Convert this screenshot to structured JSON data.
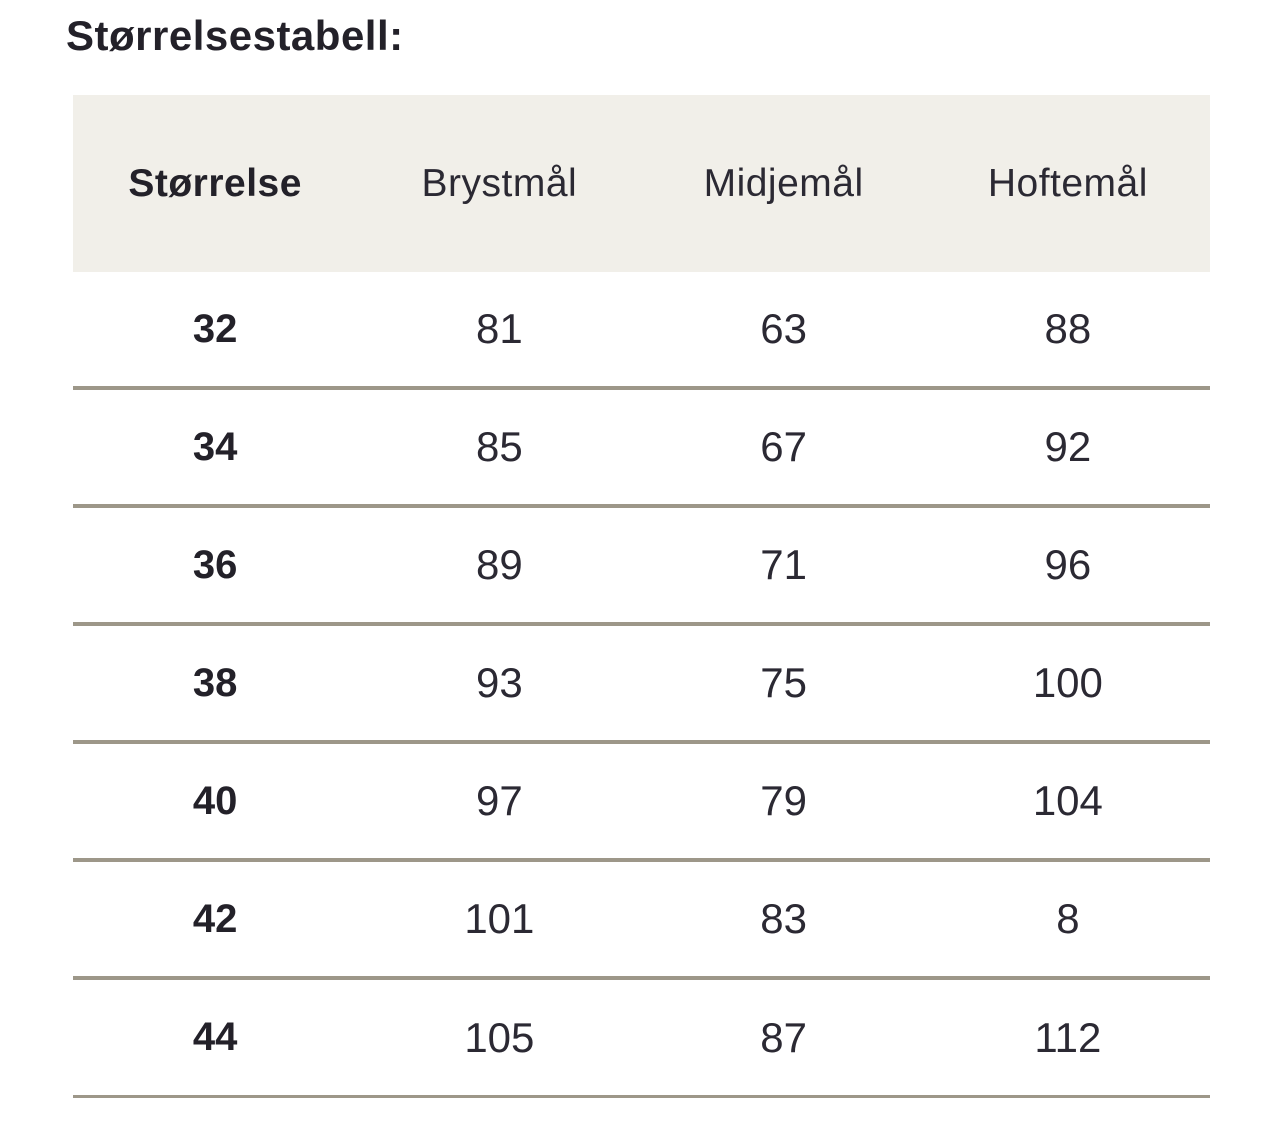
{
  "title": "Størrelsestabell:",
  "colors": {
    "background": "#ffffff",
    "header_band": "#f1efe9",
    "divider": "#9d9789",
    "text": "#262430"
  },
  "table": {
    "columns": [
      "Størrelse",
      "Brystmål",
      "Midjemål",
      "Hoftemål"
    ],
    "rows": [
      {
        "size": "32",
        "bryst": "81",
        "midje": "63",
        "hofte": "88"
      },
      {
        "size": "34",
        "bryst": "85",
        "midje": "67",
        "hofte": "92"
      },
      {
        "size": "36",
        "bryst": "89",
        "midje": "71",
        "hofte": "96"
      },
      {
        "size": "38",
        "bryst": "93",
        "midje": "75",
        "hofte": "100"
      },
      {
        "size": "40",
        "bryst": "97",
        "midje": "79",
        "hofte": "104"
      },
      {
        "size": "42",
        "bryst": "101",
        "midje": "83",
        "hofte": "8"
      },
      {
        "size": "44",
        "bryst": "105",
        "midje": "87",
        "hofte": "112"
      }
    ]
  },
  "chart_data": {
    "type": "table",
    "title": "Størrelsestabell:",
    "columns": [
      "Størrelse",
      "Brystmål",
      "Midjemål",
      "Hoftemål"
    ],
    "rows": [
      [
        "32",
        "81",
        "63",
        "88"
      ],
      [
        "34",
        "85",
        "67",
        "92"
      ],
      [
        "36",
        "89",
        "71",
        "96"
      ],
      [
        "38",
        "93",
        "75",
        "100"
      ],
      [
        "40",
        "97",
        "79",
        "104"
      ],
      [
        "42",
        "101",
        "83",
        "8"
      ],
      [
        "44",
        "105",
        "87",
        "112"
      ]
    ]
  }
}
